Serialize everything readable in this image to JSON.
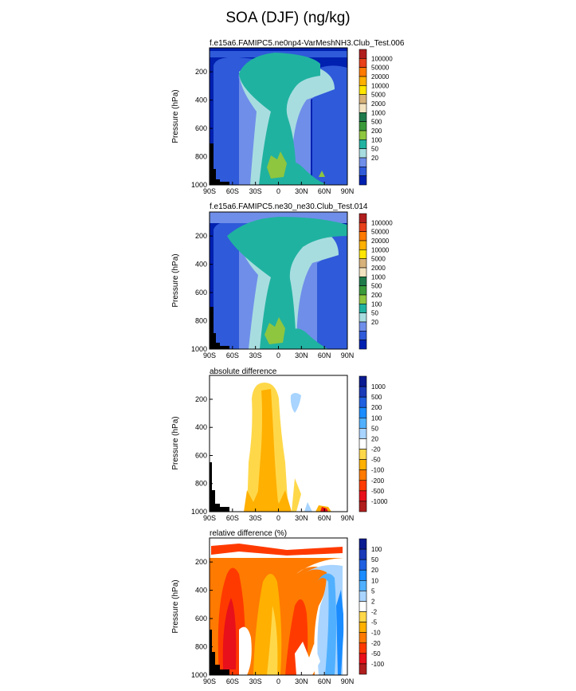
{
  "title": "SOA (DJF) (ng/kg)",
  "chart_data": [
    {
      "type": "heatmap",
      "title": "f.e15a6.FAMIPC5.ne0np4-VarMeshNH3.Club_Test.006",
      "ylabel": "Pressure (hPa)",
      "xlim": [
        -90,
        90
      ],
      "ylim": [
        1000,
        30
      ],
      "x_ticks": [
        "90S",
        "60S",
        "30S",
        "0",
        "30N",
        "60N",
        "90N"
      ],
      "y_ticks": [
        "200",
        "400",
        "600",
        "800",
        "1000"
      ],
      "colorbar": {
        "labels": [
          "20",
          "50",
          "100",
          "200",
          "500",
          "1000",
          "2000",
          "5000",
          "10000",
          "20000",
          "50000",
          "100000"
        ],
        "colors": [
          "#0020b0",
          "#2f5ad9",
          "#6f8ee9",
          "#a8dde0",
          "#20b2a0",
          "#8ec63f",
          "#3a9a3a",
          "#1f7a4a",
          "#f3e3c0",
          "#d6b27a",
          "#ffe600",
          "#ffb000",
          "#ff7a00",
          "#e8401a",
          "#b01e1e"
        ]
      }
    },
    {
      "type": "heatmap",
      "title": "f.e15a6.FAMIPC5.ne30_ne30.Club_Test.014",
      "ylabel": "Pressure (hPa)",
      "xlim": [
        -90,
        90
      ],
      "ylim": [
        1000,
        30
      ],
      "x_ticks": [
        "90S",
        "60S",
        "30S",
        "0",
        "30N",
        "60N",
        "90N"
      ],
      "y_ticks": [
        "200",
        "400",
        "600",
        "800",
        "1000"
      ],
      "colorbar": {
        "labels": [
          "20",
          "50",
          "100",
          "200",
          "500",
          "1000",
          "2000",
          "5000",
          "10000",
          "20000",
          "50000",
          "100000"
        ],
        "colors": [
          "#0020b0",
          "#2f5ad9",
          "#6f8ee9",
          "#a8dde0",
          "#20b2a0",
          "#8ec63f",
          "#3a9a3a",
          "#1f7a4a",
          "#f3e3c0",
          "#d6b27a",
          "#ffe600",
          "#ffb000",
          "#ff7a00",
          "#e8401a",
          "#b01e1e"
        ]
      }
    },
    {
      "type": "heatmap",
      "title": "absolute difference",
      "ylabel": "Pressure (hPa)",
      "xlim": [
        -90,
        90
      ],
      "ylim": [
        1000,
        30
      ],
      "x_ticks": [
        "90S",
        "60S",
        "30S",
        "0",
        "30N",
        "60N",
        "90N"
      ],
      "y_ticks": [
        "200",
        "400",
        "600",
        "800",
        "1000"
      ],
      "colorbar": {
        "labels": [
          "1000",
          "500",
          "200",
          "100",
          "50",
          "20",
          "-20",
          "-50",
          "-100",
          "-200",
          "-500",
          "-1000"
        ],
        "colors": [
          "#b01e1e",
          "#e8101a",
          "#ff3a00",
          "#ff7a00",
          "#ffb000",
          "#ffd84a",
          "#ffffff",
          "#a8d4ff",
          "#50b0ff",
          "#1a8cff",
          "#2060e0",
          "#1a3ab8",
          "#0a1a90"
        ]
      }
    },
    {
      "type": "heatmap",
      "title": "relative difference (%)",
      "ylabel": "Pressure (hPa)",
      "xlim": [
        -90,
        90
      ],
      "ylim": [
        1000,
        30
      ],
      "x_ticks": [
        "90S",
        "60S",
        "30S",
        "0",
        "30N",
        "60N",
        "90N"
      ],
      "y_ticks": [
        "200",
        "400",
        "600",
        "800",
        "1000"
      ],
      "colorbar": {
        "labels": [
          "100",
          "50",
          "20",
          "10",
          "5",
          "2",
          "-2",
          "-5",
          "-10",
          "-20",
          "-50",
          "-100"
        ],
        "colors": [
          "#b01e1e",
          "#e8101a",
          "#ff3a00",
          "#ff7a00",
          "#ffb000",
          "#ffd84a",
          "#ffffff",
          "#a8d4ff",
          "#50b0ff",
          "#1a8cff",
          "#2060e0",
          "#1a3ab8",
          "#0a1a90"
        ]
      }
    }
  ]
}
